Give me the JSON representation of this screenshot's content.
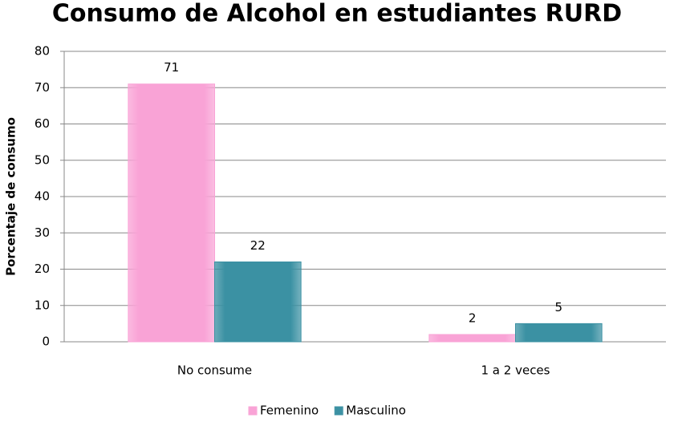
{
  "chart_data": {
    "type": "bar",
    "title": "Consumo de Alcohol en estudiantes RURD",
    "y_label": "Porcentaje de consumo",
    "categories": [
      "No consume",
      "1 a 2 veces"
    ],
    "series": [
      {
        "name": "Femenino",
        "color": "#f9a3d6",
        "values": [
          71,
          2
        ]
      },
      {
        "name": "Masculino",
        "color": "#3b91a3",
        "values": [
          22,
          5
        ]
      }
    ],
    "ylim": [
      0,
      80
    ],
    "yticks": [
      0,
      10,
      20,
      30,
      40,
      50,
      60,
      70,
      80
    ],
    "grid": true,
    "legend": "bottom"
  }
}
